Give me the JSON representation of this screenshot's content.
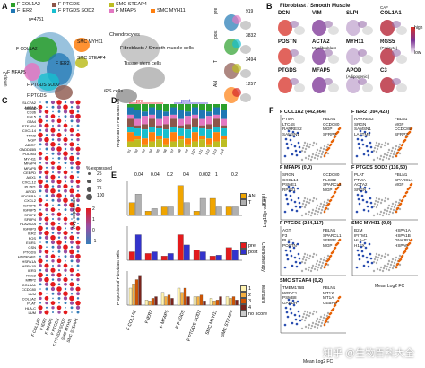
{
  "panels": {
    "A": "A",
    "B": "B",
    "C": "C",
    "D": "D",
    "E": "E",
    "F": "F"
  },
  "panelA": {
    "legend": [
      {
        "name": "F COL1A2",
        "color": "#2ca02c"
      },
      {
        "name": "F IER2",
        "color": "#1f77b4"
      },
      {
        "name": "F PTGDS",
        "color": "#8c564b"
      },
      {
        "name": "F PTGDS SOD2",
        "color": "#17becf"
      },
      {
        "name": "SMC STEAP4",
        "color": "#bcbd22"
      },
      {
        "name": "F MFAP5",
        "color": "#e377c2"
      },
      {
        "name": "SMC MYH11",
        "color": "#ff7f0e"
      }
    ],
    "n_label": "n=4751",
    "cluster_labels": [
      "F COL1A2",
      "F IER2",
      "F PTGDS SOD2",
      "F PTGDS",
      "F MFAP5",
      "SMC MYH11",
      "SMC STEAP4"
    ],
    "other_labels": [
      "Chondrocytes",
      "Fibroblasts / Smooth muscle cells",
      "Tissue stem cells",
      "iPS cells"
    ],
    "axis_x": "umap-1",
    "axis_y": "umap-2",
    "side_groups": [
      {
        "name": "pre",
        "count": "919"
      },
      {
        "name": "post",
        "count": "3832"
      },
      {
        "name": "T",
        "count": "3494"
      },
      {
        "name": "AN",
        "count": "1257"
      }
    ]
  },
  "panelB": {
    "title": "Fibroblast / Smooth Muscle",
    "genes": [
      "DCN",
      "VIM",
      "SLPI",
      "COL1A1",
      "POSTN",
      "ACTA2",
      "MYH11",
      "RGS5",
      "PTGDS",
      "MFAP5",
      "APOD",
      "C3"
    ],
    "sublabels": {
      "COL1A1": "CAF",
      "ACTA2": "Myofibroblast",
      "RGS5": "(Pericyte)",
      "APOD": "(Adipogenic)"
    },
    "colorbar": {
      "high": "high",
      "low": "low"
    }
  },
  "panelC": {
    "genes": [
      "SLC7A2",
      "ACTA2",
      "CD36",
      "FHL5",
      "GJA4",
      "STEAP4",
      "CXCL14",
      "TPM2",
      "MGP",
      "ADIRF",
      "GADD45B",
      "PDLIM3",
      "MYH11",
      "MFAP4",
      "MFAP5",
      "CEBPD",
      "AOX1",
      "CXCL12",
      "PLPP1",
      "APOD",
      "PDGFRA",
      "CXCL2",
      "IGFBP6",
      "IGFBP5",
      "SFRP2",
      "SFRP4",
      "PLA2G2A",
      "IGFBP3",
      "IER2",
      "FOS",
      "EGR1",
      "GSN",
      "PTGDS",
      "HSP90AB1",
      "HSPA1A",
      "HSPA1B",
      "IER3",
      "RGS2",
      "MMP2",
      "COL3A1",
      "CCDC80",
      "LUM",
      "COL1A2",
      "PLAT",
      "HLA-C",
      "LUM"
    ],
    "columns": [
      "F COL1A2",
      "F IER2",
      "F MFAP5",
      "F PTGDS",
      "F PTGDS SOD2",
      "SMC MYH11",
      "SMC STEAP4"
    ],
    "size_legend_title": "% expressed",
    "size_legend": [
      "25",
      "50",
      "75",
      "100"
    ],
    "color_legend_title": "Avg. expression",
    "color_legend": [
      "2",
      "1",
      "0",
      "-1"
    ]
  },
  "panelD": {
    "ylabel": "Proportion of Fibroblast cells",
    "groups": [
      "pre",
      "post"
    ],
    "samples": [
      "p1",
      "p2",
      "p3",
      "p4",
      "p5",
      "p6",
      "p7",
      "p8",
      "p9",
      "p10",
      "p11",
      "p12",
      "p13",
      "p14"
    ]
  },
  "panelE": {
    "ylabel": "Proportion of Fibroblast cells",
    "categories": [
      "F COL1A2",
      "F IER2",
      "F MFAP5",
      "F PTGDS",
      "F PTGDS SOD2",
      "SMC MYH11",
      "SMC STEAP4"
    ],
    "pvalues": [
      "0.04",
      "0.04",
      "0.2",
      "0.4",
      "0.002",
      "1",
      "0.2"
    ],
    "tissue_legend_title": "Tissue",
    "tissue_legend": [
      {
        "name": "AN",
        "color": "#f0a500"
      },
      {
        "name": "T",
        "color": "#b0b0b0"
      }
    ],
    "chemo_legend_title": "Chemotherapy",
    "chemo_legend": [
      {
        "name": "pre",
        "color": "#e41a1c"
      },
      {
        "name": "post",
        "color": "#3333cc"
      }
    ],
    "mandard_legend_title": "Mandard",
    "mandard_legend": [
      {
        "name": "1",
        "color": "#fff3b0"
      },
      {
        "name": "2",
        "color": "#f5b041"
      },
      {
        "name": "3",
        "color": "#d35400"
      },
      {
        "name": "4",
        "color": "#7b241c"
      },
      {
        "name": "no score",
        "color": "#cccccc"
      }
    ],
    "rows": [
      {
        "AN": [
          0.15,
          0.05,
          0.1,
          0.35,
          0.05,
          0.2,
          0.1
        ],
        "T": [
          0.25,
          0.08,
          0.1,
          0.15,
          0.2,
          0.1,
          0.1
        ]
      },
      {
        "pre": [
          0.1,
          0.08,
          0.05,
          0.3,
          0.12,
          0.05,
          0.15
        ],
        "post": [
          0.3,
          0.1,
          0.08,
          0.18,
          0.1,
          0.06,
          0.12
        ]
      },
      {
        "m1": [
          0.2,
          0.06,
          0.15,
          0.2,
          0.1,
          0.08,
          0.1
        ],
        "m2": [
          0.25,
          0.05,
          0.1,
          0.15,
          0.1,
          0.05,
          0.08
        ],
        "m3": [
          0.3,
          0.08,
          0.12,
          0.2,
          0.12,
          0.06,
          0.1
        ],
        "m4": [
          0.35,
          0.1,
          0.08,
          0.1,
          0.05,
          0.1,
          0.06
        ]
      }
    ]
  },
  "panelF": {
    "ylabel": "-Log10(p-value)",
    "xlabel": "Mean Log2 FC",
    "volcanoes": [
      {
        "title": "F COL1A2 (442,464)",
        "left": [
          "PTMA",
          "LTC4S",
          "RARRES2",
          "SAMSN1"
        ],
        "right": [
          "FBLN1",
          "CCDC80",
          "MGP",
          "SFRP2"
        ]
      },
      {
        "title": "F IER2 (394,423)",
        "left": [
          "RARRES2",
          "SRGN",
          "SAMSN1",
          "LAPTM5"
        ],
        "right": [
          "FBLN1",
          "MGP",
          "CCDC80",
          "SFRP2"
        ]
      },
      {
        "title": "F MFAP5 (0,0)",
        "left": [
          "SRGN",
          "CXCL14",
          "PSME1",
          "RPS21"
        ],
        "right": [
          "CCDC80",
          "PLCG2",
          "SPARCL1",
          "MGP"
        ]
      },
      {
        "title": "F PTGDS SOD2 (116,50)",
        "left": [
          "PLAT",
          "PTMA",
          "ACTA2",
          "SRGN"
        ],
        "right": [
          "FBLN1",
          "SPARCL1",
          "MGP"
        ]
      },
      {
        "title": "F PTGDS (244,117)",
        "left": [
          "AGT",
          "F3",
          "PLAT",
          "POSTN"
        ],
        "right": [
          "FBLN1",
          "SPARCL1",
          "SFRP2",
          "MGP"
        ]
      },
      {
        "title": "SMC MYH11 (0,0)",
        "left": [
          "B2M",
          "IFITM1",
          "HLA-C",
          "H1FX"
        ],
        "right": [
          "HSPA1A",
          "HSPA1B",
          "DNAJB1",
          "HSPA6"
        ]
      },
      {
        "title": "SMC STEAP4 (0,2)",
        "left": [
          "TMEM176B",
          "WFDC1",
          "PSMB8",
          "GAPDH"
        ],
        "right": [
          "FBLN1",
          "MT1X",
          "MT1A",
          "CEBPD"
        ]
      }
    ]
  },
  "watermark": "知乎 @生物百科大全"
}
